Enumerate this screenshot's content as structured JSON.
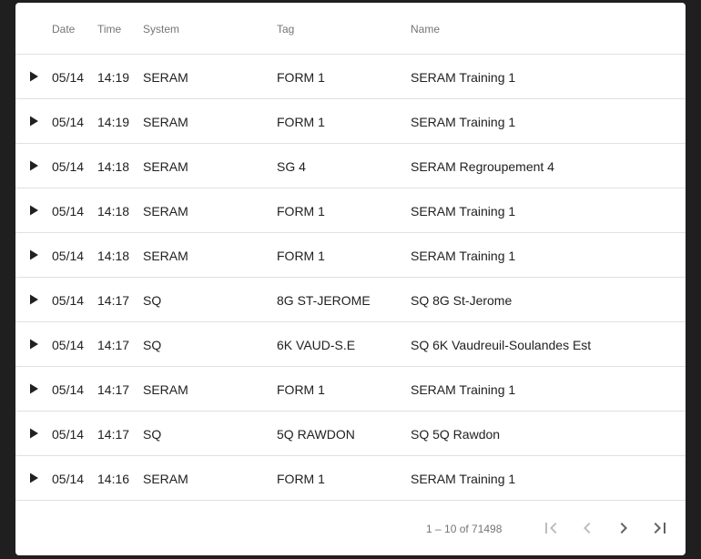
{
  "table": {
    "columns": {
      "date": "Date",
      "time": "Time",
      "system": "System",
      "tag": "Tag",
      "name": "Name"
    },
    "rows": [
      {
        "date": "05/14",
        "time": "14:19",
        "system": "SERAM",
        "tag": "FORM 1",
        "name": "SERAM Training 1"
      },
      {
        "date": "05/14",
        "time": "14:19",
        "system": "SERAM",
        "tag": "FORM 1",
        "name": "SERAM Training 1"
      },
      {
        "date": "05/14",
        "time": "14:18",
        "system": "SERAM",
        "tag": "SG 4",
        "name": "SERAM Regroupement 4"
      },
      {
        "date": "05/14",
        "time": "14:18",
        "system": "SERAM",
        "tag": "FORM 1",
        "name": "SERAM Training 1"
      },
      {
        "date": "05/14",
        "time": "14:18",
        "system": "SERAM",
        "tag": "FORM 1",
        "name": "SERAM Training 1"
      },
      {
        "date": "05/14",
        "time": "14:17",
        "system": "SQ",
        "tag": "8G ST-JEROME",
        "name": "SQ 8G St-Jerome"
      },
      {
        "date": "05/14",
        "time": "14:17",
        "system": "SQ",
        "tag": "6K VAUD-S.E",
        "name": "SQ 6K Vaudreuil-Soulandes Est"
      },
      {
        "date": "05/14",
        "time": "14:17",
        "system": "SERAM",
        "tag": "FORM 1",
        "name": "SERAM Training 1"
      },
      {
        "date": "05/14",
        "time": "14:17",
        "system": "SQ",
        "tag": "5Q RAWDON",
        "name": "SQ 5Q Rawdon"
      },
      {
        "date": "05/14",
        "time": "14:16",
        "system": "SERAM",
        "tag": "FORM 1",
        "name": "SERAM Training 1"
      }
    ]
  },
  "paginator": {
    "range_label": "1 – 10 of 71498",
    "icons": [
      "first-page-icon",
      "previous-page-icon",
      "next-page-icon",
      "last-page-icon"
    ]
  },
  "colors": {
    "background": "#1f1f1f",
    "card": "#ffffff",
    "divider": "#e0e0e0",
    "text": "#212121",
    "secondary_text": "#757575",
    "disabled_icon": "#bdbdbd",
    "active_icon": "#616161"
  }
}
